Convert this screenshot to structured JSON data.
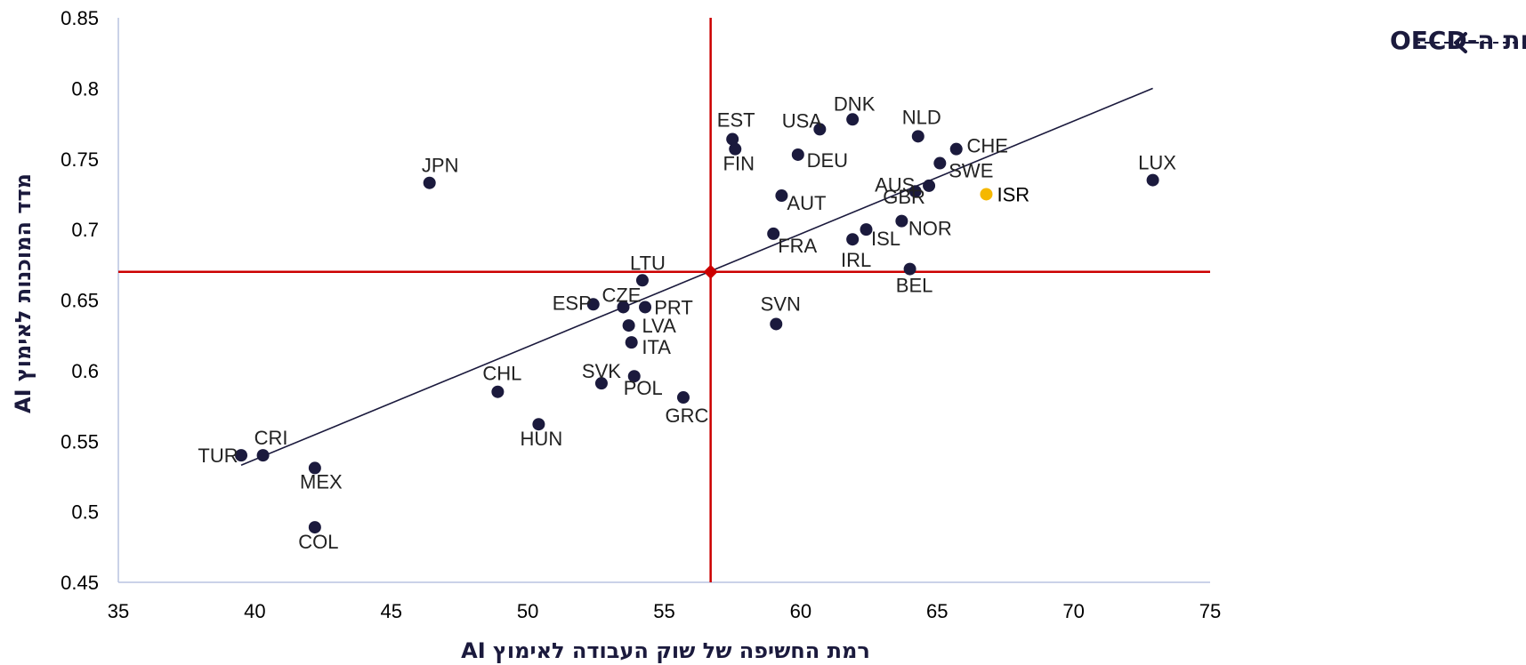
{
  "chart_data": {
    "type": "scatter",
    "xlabel": "רמת החשיפה של שוק העבודה לאימוץ AI",
    "ylabel": "מדד המוכנות לאימוץ AI",
    "xlim": [
      35,
      75
    ],
    "ylim": [
      0.45,
      0.85
    ],
    "xticks": [
      "35",
      "40",
      "45",
      "50",
      "55",
      "60",
      "65",
      "70",
      "75"
    ],
    "yticks": [
      "0.45",
      "0.5",
      "0.55",
      "0.6",
      "0.65",
      "0.7",
      "0.75",
      "0.8",
      "0.85"
    ],
    "grid": false,
    "legend": {
      "label": "מדינות ה-OECD",
      "placement": "top-right"
    },
    "colors": {
      "point": "#1b1a3d",
      "highlight": "#f5b800",
      "reference": "#cc0000",
      "trend": "#1b1a3d",
      "axis": "#b8c4e0"
    },
    "reference_point": {
      "x": 56.7,
      "y": 0.67
    },
    "trendline": [
      [
        39.5,
        0.533
      ],
      [
        72.9,
        0.8
      ]
    ],
    "points": [
      {
        "label": "JPN",
        "x": 46.4,
        "y": 0.733
      },
      {
        "label": "EST",
        "x": 57.5,
        "y": 0.764
      },
      {
        "label": "FIN",
        "x": 57.6,
        "y": 0.757
      },
      {
        "label": "USA",
        "x": 60.7,
        "y": 0.771
      },
      {
        "label": "DNK",
        "x": 61.9,
        "y": 0.778
      },
      {
        "label": "NLD",
        "x": 64.3,
        "y": 0.766
      },
      {
        "label": "DEU",
        "x": 59.9,
        "y": 0.753
      },
      {
        "label": "CHE",
        "x": 65.7,
        "y": 0.757
      },
      {
        "label": "SWE",
        "x": 65.1,
        "y": 0.747
      },
      {
        "label": "LUX",
        "x": 72.9,
        "y": 0.735
      },
      {
        "label": "AUS",
        "x": 64.2,
        "y": 0.727
      },
      {
        "label": "GBR",
        "x": 64.7,
        "y": 0.731
      },
      {
        "label": "ISR",
        "x": 66.8,
        "y": 0.725,
        "highlight": true
      },
      {
        "label": "AUT",
        "x": 59.3,
        "y": 0.724
      },
      {
        "label": "NOR",
        "x": 63.7,
        "y": 0.706
      },
      {
        "label": "ISL",
        "x": 62.4,
        "y": 0.7
      },
      {
        "label": "IRL",
        "x": 61.9,
        "y": 0.693
      },
      {
        "label": "FRA",
        "x": 59.0,
        "y": 0.697
      },
      {
        "label": "BEL",
        "x": 64.0,
        "y": 0.672
      },
      {
        "label": "LTU",
        "x": 54.2,
        "y": 0.664
      },
      {
        "label": "ESP",
        "x": 52.4,
        "y": 0.647
      },
      {
        "label": "CZE",
        "x": 53.5,
        "y": 0.645
      },
      {
        "label": "PRT",
        "x": 54.3,
        "y": 0.645
      },
      {
        "label": "SVN",
        "x": 59.1,
        "y": 0.633
      },
      {
        "label": "LVA",
        "x": 53.7,
        "y": 0.632
      },
      {
        "label": "ITA",
        "x": 53.8,
        "y": 0.62
      },
      {
        "label": "SVK",
        "x": 52.7,
        "y": 0.591
      },
      {
        "label": "POL",
        "x": 53.9,
        "y": 0.596
      },
      {
        "label": "CHL",
        "x": 48.9,
        "y": 0.585
      },
      {
        "label": "GRC",
        "x": 55.7,
        "y": 0.581
      },
      {
        "label": "HUN",
        "x": 50.4,
        "y": 0.562
      },
      {
        "label": "TUR",
        "x": 39.5,
        "y": 0.54
      },
      {
        "label": "CRI",
        "x": 40.3,
        "y": 0.54
      },
      {
        "label": "MEX",
        "x": 42.2,
        "y": 0.531
      },
      {
        "label": "COL",
        "x": 42.2,
        "y": 0.489
      }
    ]
  }
}
